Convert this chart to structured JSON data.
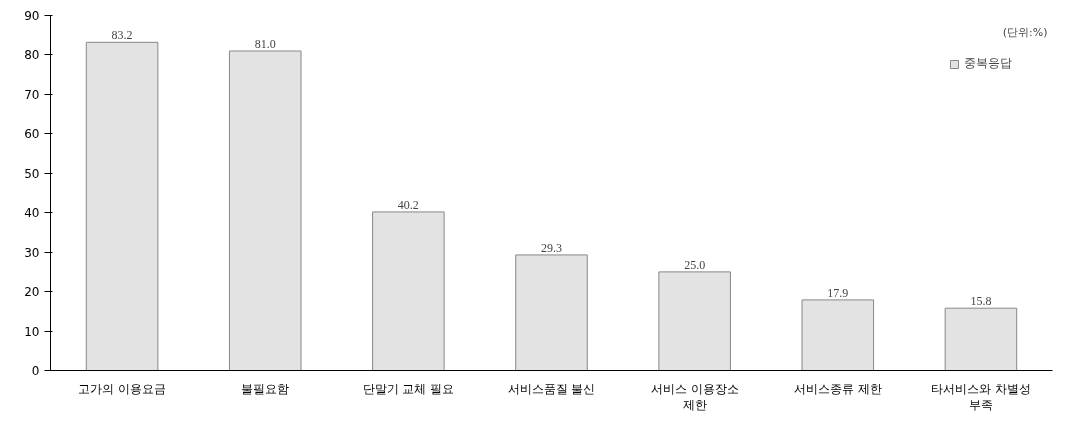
{
  "chart_data": {
    "type": "bar",
    "categories": [
      "고가의 이용요금",
      "불필요함",
      "단말기 교체 필요",
      "서비스품질 불신",
      "서비스 이용장소 제한",
      "서비스종류 제한",
      "타서비스와 차별성 부족"
    ],
    "series": [
      {
        "name": "중복응답",
        "color": "#e3e3e3",
        "values": [
          83.2,
          81.0,
          40.2,
          29.3,
          25.0,
          17.9,
          15.8
        ]
      }
    ],
    "value_labels": [
      "83.2",
      "81.0",
      "40.2",
      "29.3",
      "25.0",
      "17.9",
      "15.8"
    ],
    "ylim": [
      0,
      90
    ],
    "yticks": [
      0,
      10,
      20,
      30,
      40,
      50,
      60,
      70,
      80,
      90
    ],
    "grid": false,
    "legend": "top right",
    "annotations": [
      "(단위:%)"
    ]
  }
}
